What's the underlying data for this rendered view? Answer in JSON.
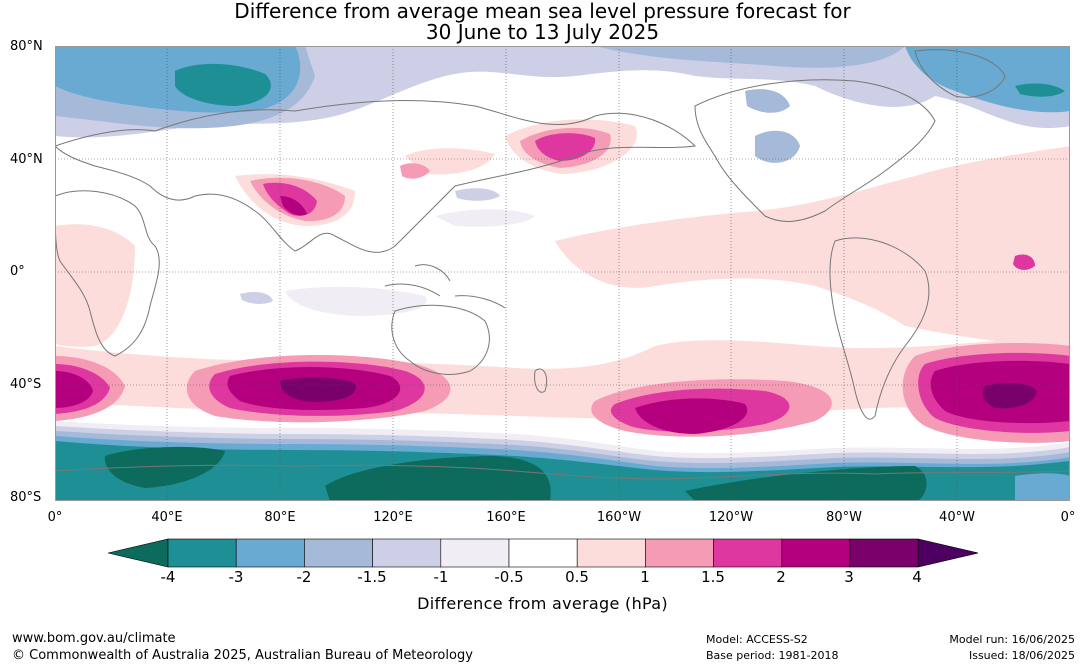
{
  "title_line1": "Difference from average mean sea level pressure forecast for",
  "title_line2": "30 June to 13 July 2025",
  "lat_labels": [
    "80°N",
    "40°N",
    "0°",
    "40°S",
    "80°S"
  ],
  "lon_labels": [
    "0°",
    "40°E",
    "80°E",
    "120°E",
    "160°E",
    "160°W",
    "120°W",
    "80°W",
    "40°W",
    "0°"
  ],
  "colorbar": {
    "labels": [
      "-4",
      "-3",
      "-2",
      "-1.5",
      "-1",
      "-0.5",
      "0.5",
      "1",
      "1.5",
      "2",
      "3",
      "4"
    ],
    "colors": [
      "#0d6b5d",
      "#1e9095",
      "#68aad2",
      "#a5b9d9",
      "#cccfe5",
      "#f0edf4",
      "#ffffff",
      "#fddcdc",
      "#f59bb5",
      "#de38a0",
      "#b4007e",
      "#7a006c",
      "#4d0062"
    ],
    "title": "Difference from average (hPa)"
  },
  "footer": {
    "website": "www.bom.gov.au/climate",
    "copyright": "© Commonwealth of Australia 2025, Australian Bureau of Meteorology",
    "model": "Model: ACCESS-S2",
    "base_period": "Base period: 1981-2018",
    "model_run": "Model run: 16/06/2025",
    "issued": "Issued: 18/06/2025"
  }
}
